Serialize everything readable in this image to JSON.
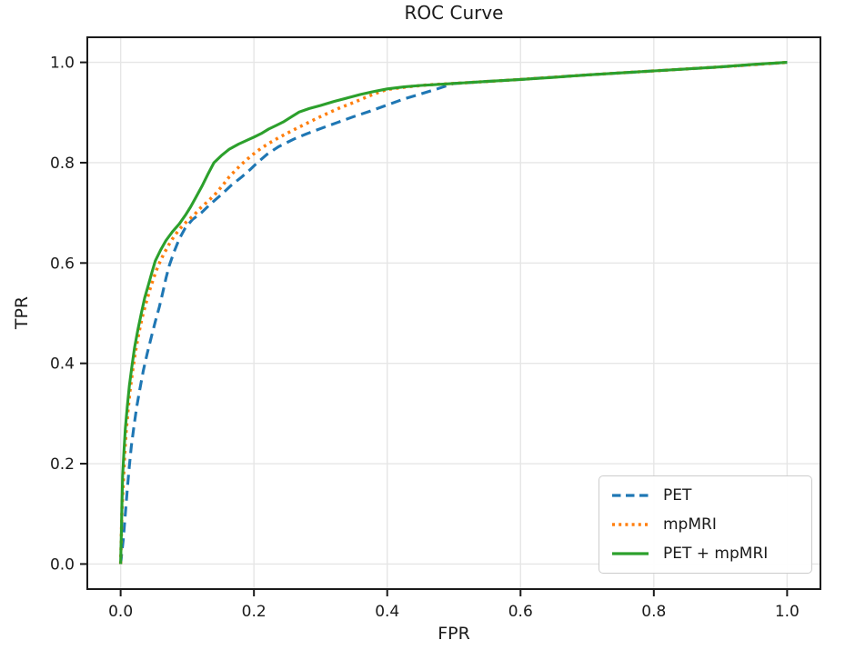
{
  "colors": {
    "background": "#ffffff",
    "grid": "#e6e6e6",
    "spine": "#1a1a1a",
    "text": "#1a1a1a",
    "legend_border": "#cccccc",
    "pet_blue": "#1f77b4",
    "mpmri_orange": "#ff7f0e",
    "combined_green": "#2ca02c"
  },
  "chart_data": {
    "type": "line",
    "title": "ROC Curve",
    "xlabel": "FPR",
    "ylabel": "TPR",
    "xlim": [
      -0.05,
      1.05
    ],
    "ylim": [
      -0.05,
      1.05
    ],
    "x_ticks": [
      0.0,
      0.2,
      0.4,
      0.6,
      0.8,
      1.0
    ],
    "y_ticks": [
      0.0,
      0.2,
      0.4,
      0.6,
      0.8,
      1.0
    ],
    "grid": true,
    "legend_position": "lower right",
    "series": [
      {
        "name": "PET",
        "color": "#1f77b4",
        "style": "dashed",
        "points": [
          [
            0.0,
            0.0
          ],
          [
            0.004,
            0.05
          ],
          [
            0.007,
            0.1
          ],
          [
            0.01,
            0.15
          ],
          [
            0.013,
            0.195
          ],
          [
            0.016,
            0.235
          ],
          [
            0.02,
            0.275
          ],
          [
            0.024,
            0.312
          ],
          [
            0.029,
            0.35
          ],
          [
            0.034,
            0.385
          ],
          [
            0.04,
            0.42
          ],
          [
            0.046,
            0.452
          ],
          [
            0.052,
            0.483
          ],
          [
            0.058,
            0.512
          ],
          [
            0.063,
            0.54
          ],
          [
            0.068,
            0.57
          ],
          [
            0.073,
            0.595
          ],
          [
            0.08,
            0.622
          ],
          [
            0.088,
            0.648
          ],
          [
            0.097,
            0.67
          ],
          [
            0.108,
            0.687
          ],
          [
            0.121,
            0.7
          ],
          [
            0.135,
            0.718
          ],
          [
            0.15,
            0.735
          ],
          [
            0.166,
            0.755
          ],
          [
            0.182,
            0.772
          ],
          [
            0.194,
            0.786
          ],
          [
            0.205,
            0.8
          ],
          [
            0.22,
            0.817
          ],
          [
            0.237,
            0.832
          ],
          [
            0.26,
            0.847
          ],
          [
            0.28,
            0.858
          ],
          [
            0.3,
            0.868
          ],
          [
            0.325,
            0.88
          ],
          [
            0.35,
            0.892
          ],
          [
            0.375,
            0.903
          ],
          [
            0.4,
            0.915
          ],
          [
            0.425,
            0.927
          ],
          [
            0.45,
            0.937
          ],
          [
            0.475,
            0.947
          ],
          [
            0.5,
            0.958
          ],
          [
            0.55,
            0.962
          ],
          [
            0.6,
            0.966
          ],
          [
            0.7,
            0.975
          ],
          [
            0.8,
            0.983
          ],
          [
            0.9,
            0.991
          ],
          [
            1.0,
            1.0
          ]
        ]
      },
      {
        "name": "mpMRI",
        "color": "#ff7f0e",
        "style": "dotted",
        "points": [
          [
            0.0,
            0.0
          ],
          [
            0.001,
            0.055
          ],
          [
            0.002,
            0.11
          ],
          [
            0.004,
            0.165
          ],
          [
            0.006,
            0.215
          ],
          [
            0.008,
            0.26
          ],
          [
            0.011,
            0.305
          ],
          [
            0.014,
            0.345
          ],
          [
            0.018,
            0.385
          ],
          [
            0.022,
            0.422
          ],
          [
            0.027,
            0.458
          ],
          [
            0.032,
            0.49
          ],
          [
            0.038,
            0.52
          ],
          [
            0.044,
            0.548
          ],
          [
            0.05,
            0.572
          ],
          [
            0.056,
            0.594
          ],
          [
            0.064,
            0.616
          ],
          [
            0.072,
            0.636
          ],
          [
            0.081,
            0.655
          ],
          [
            0.09,
            0.67
          ],
          [
            0.1,
            0.684
          ],
          [
            0.109,
            0.694
          ],
          [
            0.12,
            0.71
          ],
          [
            0.131,
            0.723
          ],
          [
            0.141,
            0.736
          ],
          [
            0.152,
            0.753
          ],
          [
            0.163,
            0.772
          ],
          [
            0.174,
            0.787
          ],
          [
            0.184,
            0.8
          ],
          [
            0.197,
            0.815
          ],
          [
            0.21,
            0.828
          ],
          [
            0.223,
            0.839
          ],
          [
            0.24,
            0.852
          ],
          [
            0.256,
            0.863
          ],
          [
            0.271,
            0.873
          ],
          [
            0.286,
            0.883
          ],
          [
            0.3,
            0.892
          ],
          [
            0.315,
            0.901
          ],
          [
            0.33,
            0.91
          ],
          [
            0.346,
            0.918
          ],
          [
            0.362,
            0.927
          ],
          [
            0.38,
            0.937
          ],
          [
            0.4,
            0.946
          ],
          [
            0.43,
            0.951
          ],
          [
            0.46,
            0.955
          ],
          [
            0.5,
            0.958
          ],
          [
            0.55,
            0.962
          ],
          [
            0.6,
            0.966
          ],
          [
            0.7,
            0.975
          ],
          [
            0.8,
            0.983
          ],
          [
            0.9,
            0.991
          ],
          [
            1.0,
            1.0
          ]
        ]
      },
      {
        "name": "PET + mpMRI",
        "color": "#2ca02c",
        "style": "solid",
        "points": [
          [
            0.0,
            0.0
          ],
          [
            0.001,
            0.06
          ],
          [
            0.002,
            0.12
          ],
          [
            0.003,
            0.175
          ],
          [
            0.005,
            0.225
          ],
          [
            0.007,
            0.27
          ],
          [
            0.01,
            0.315
          ],
          [
            0.013,
            0.355
          ],
          [
            0.017,
            0.395
          ],
          [
            0.021,
            0.432
          ],
          [
            0.026,
            0.468
          ],
          [
            0.031,
            0.5
          ],
          [
            0.036,
            0.53
          ],
          [
            0.042,
            0.558
          ],
          [
            0.047,
            0.582
          ],
          [
            0.052,
            0.604
          ],
          [
            0.06,
            0.626
          ],
          [
            0.068,
            0.645
          ],
          [
            0.078,
            0.663
          ],
          [
            0.088,
            0.678
          ],
          [
            0.097,
            0.695
          ],
          [
            0.105,
            0.712
          ],
          [
            0.113,
            0.731
          ],
          [
            0.122,
            0.753
          ],
          [
            0.131,
            0.777
          ],
          [
            0.14,
            0.8
          ],
          [
            0.151,
            0.814
          ],
          [
            0.163,
            0.827
          ],
          [
            0.177,
            0.837
          ],
          [
            0.19,
            0.845
          ],
          [
            0.2,
            0.851
          ],
          [
            0.211,
            0.858
          ],
          [
            0.222,
            0.867
          ],
          [
            0.233,
            0.874
          ],
          [
            0.245,
            0.882
          ],
          [
            0.257,
            0.892
          ],
          [
            0.268,
            0.901
          ],
          [
            0.283,
            0.908
          ],
          [
            0.3,
            0.914
          ],
          [
            0.32,
            0.922
          ],
          [
            0.34,
            0.929
          ],
          [
            0.36,
            0.936
          ],
          [
            0.38,
            0.942
          ],
          [
            0.4,
            0.947
          ],
          [
            0.425,
            0.951
          ],
          [
            0.45,
            0.954
          ],
          [
            0.475,
            0.956
          ],
          [
            0.5,
            0.958
          ],
          [
            0.55,
            0.962
          ],
          [
            0.6,
            0.966
          ],
          [
            0.65,
            0.97
          ],
          [
            0.7,
            0.975
          ],
          [
            0.75,
            0.979
          ],
          [
            0.8,
            0.983
          ],
          [
            0.85,
            0.987
          ],
          [
            0.9,
            0.991
          ],
          [
            0.95,
            0.996
          ],
          [
            1.0,
            1.0
          ]
        ]
      }
    ]
  }
}
